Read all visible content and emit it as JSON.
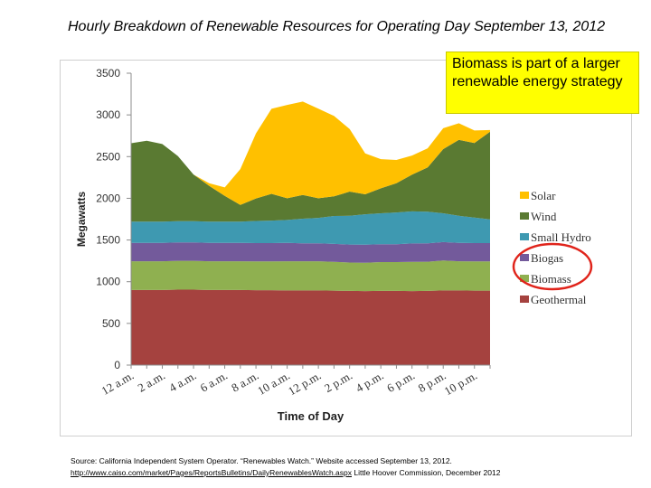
{
  "slide": {
    "title": "Hourly Breakdown of Renewable Resources for Operating Day September 13, 2012",
    "callout": "Biomass is part of a larger renewable energy strategy",
    "source_text": "Source: California Independent System Operator. “Renewables Watch.” Website accessed September 13, 2012.",
    "source_link": "http://www.caiso.com/market/Pages/ReportsBulletins/DailyRenewablesWatch.aspx",
    "source_credit": "Little Hoover Commission, December 2012"
  },
  "chart_data": {
    "type": "area",
    "stacked": true,
    "xlabel": "Time of Day",
    "ylabel": "Megawatts",
    "ylim": [
      0,
      3500
    ],
    "yticks": [
      0,
      500,
      1000,
      1500,
      2000,
      2500,
      3000,
      3500
    ],
    "x": [
      0,
      1,
      2,
      3,
      4,
      5,
      6,
      7,
      8,
      9,
      10,
      11,
      12,
      13,
      14,
      15,
      16,
      17,
      18,
      19,
      20,
      21,
      22,
      23
    ],
    "xtick_labels": [
      "12 a.m.",
      "2 a.m.",
      "4 a.m.",
      "6 a.m.",
      "8 a.m.",
      "10 a.m.",
      "12 p.m.",
      "2 p.m.",
      "4 p.m.",
      "6 p.m.",
      "8 p.m.",
      "10 p.m."
    ],
    "grid": false,
    "legend_position": "right",
    "series": [
      {
        "name": "Geothermal",
        "color": "#a5423f",
        "values": [
          900,
          900,
          900,
          905,
          905,
          900,
          900,
          900,
          898,
          898,
          895,
          895,
          895,
          893,
          890,
          888,
          890,
          890,
          888,
          890,
          895,
          895,
          893,
          893
        ]
      },
      {
        "name": "Biomass",
        "color": "#8fb050",
        "values": [
          345,
          345,
          345,
          345,
          345,
          345,
          345,
          345,
          345,
          345,
          350,
          350,
          350,
          345,
          340,
          340,
          345,
          345,
          350,
          350,
          360,
          350,
          350,
          350
        ]
      },
      {
        "name": "Biogas",
        "color": "#735a9b",
        "values": [
          220,
          220,
          220,
          220,
          220,
          220,
          220,
          220,
          220,
          220,
          220,
          215,
          215,
          215,
          215,
          215,
          215,
          215,
          220,
          220,
          220,
          220,
          220,
          220
        ]
      },
      {
        "name": "Small Hydro",
        "color": "#3e99b1",
        "values": [
          255,
          255,
          255,
          255,
          255,
          255,
          255,
          255,
          265,
          270,
          275,
          295,
          305,
          335,
          345,
          365,
          370,
          380,
          385,
          380,
          345,
          325,
          305,
          285
        ]
      },
      {
        "name": "Wind",
        "color": "#5a7a32",
        "values": [
          940,
          970,
          930,
          780,
          560,
          430,
          310,
          200,
          270,
          320,
          260,
          285,
          235,
          235,
          290,
          240,
          300,
          350,
          440,
          530,
          770,
          910,
          895,
          1050
        ]
      },
      {
        "name": "Solar",
        "color": "#ffc000",
        "values": [
          0,
          0,
          0,
          0,
          0,
          30,
          100,
          430,
          780,
          1020,
          1120,
          1120,
          1075,
          965,
          750,
          490,
          350,
          280,
          230,
          230,
          250,
          200,
          150,
          20
        ]
      }
    ]
  }
}
